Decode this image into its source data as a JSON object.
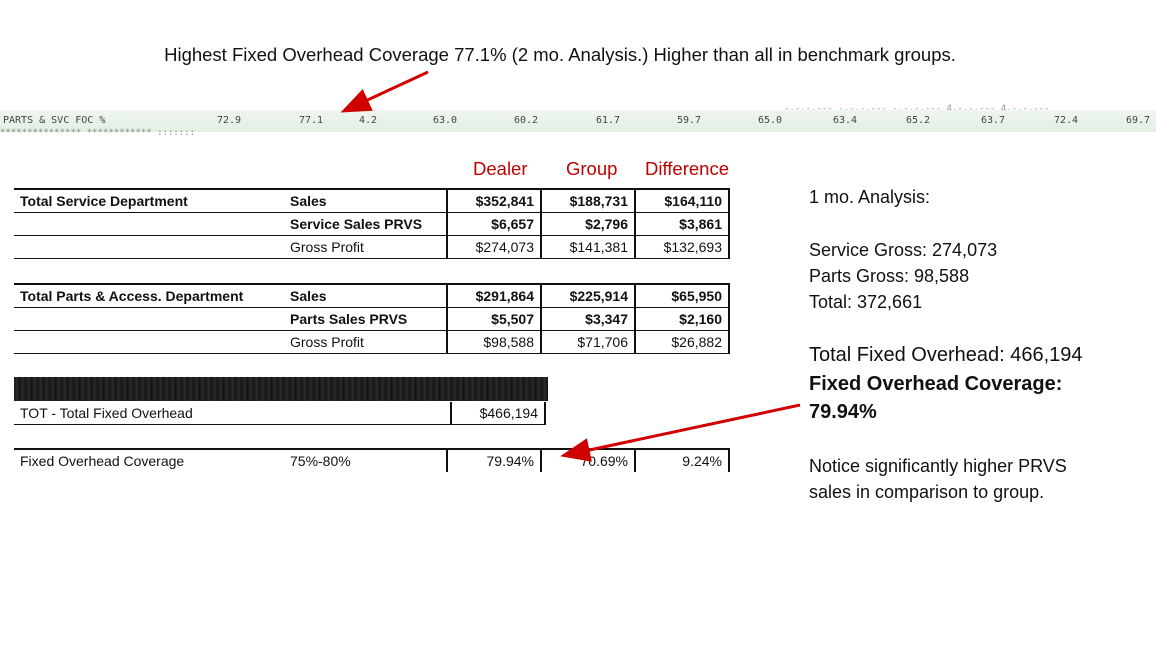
{
  "headline": "Highest Fixed Overhead Coverage 77.1% (2 mo. Analysis.) Higher than all in benchmark groups.",
  "scan": {
    "label": "PARTS & SVC FOC %",
    "values": [
      "72.9",
      "77.1",
      "4.2",
      "63.0",
      "60.2",
      "61.7",
      "59.7",
      "65.0",
      "63.4",
      "65.2",
      "63.7",
      "72.4",
      "69.7"
    ],
    "top_noise": "-,-,-,--- -,-,-,--- -,-,-,--- 4,-,-,--- 4,-,-,---",
    "dots": "*************** ************ :::::::"
  },
  "columns": {
    "dealer": "Dealer",
    "group": "Group",
    "difference": "Difference"
  },
  "service": {
    "title": "Total Service Department",
    "rows": [
      {
        "label": "Sales",
        "dealer": "$352,841",
        "group": "$188,731",
        "diff": "$164,110",
        "bold": true
      },
      {
        "label": "Service Sales PRVS",
        "dealer": "$6,657",
        "group": "$2,796",
        "diff": "$3,861",
        "bold": true
      },
      {
        "label": "Gross Profit",
        "dealer": "$274,073",
        "group": "$141,381",
        "diff": "$132,693",
        "bold": false
      }
    ]
  },
  "parts": {
    "title": "Total Parts & Access. Department",
    "rows": [
      {
        "label": "Sales",
        "dealer": "$291,864",
        "group": "$225,914",
        "diff": "$65,950",
        "bold": true
      },
      {
        "label": "Parts Sales PRVS",
        "dealer": "$5,507",
        "group": "$3,347",
        "diff": "$2,160",
        "bold": true
      },
      {
        "label": "Gross Profit",
        "dealer": "$98,588",
        "group": "$71,706",
        "diff": "$26,882",
        "bold": false
      }
    ]
  },
  "overhead": {
    "label": "TOT - Total Fixed Overhead",
    "dealer": "$466,194"
  },
  "coverage": {
    "label": "Fixed Overhead Coverage",
    "range": "75%-80%",
    "dealer": "79.94%",
    "group": "70.69%",
    "diff": "9.24%"
  },
  "side": {
    "title": "1 mo. Analysis:",
    "service_gross": "Service Gross: 274,073",
    "parts_gross": "Parts Gross: 98,588",
    "total": "Total: 372,661",
    "fixed_overhead": "Total Fixed Overhead: 466,194",
    "coverage_label": "Fixed Overhead Coverage:",
    "coverage_value": "79.94%",
    "notice_1": "Notice significantly higher PRVS",
    "notice_2": "sales in comparison to group."
  },
  "colors": {
    "accent": "#c00000",
    "scan_bg": "#e6f2e6"
  }
}
